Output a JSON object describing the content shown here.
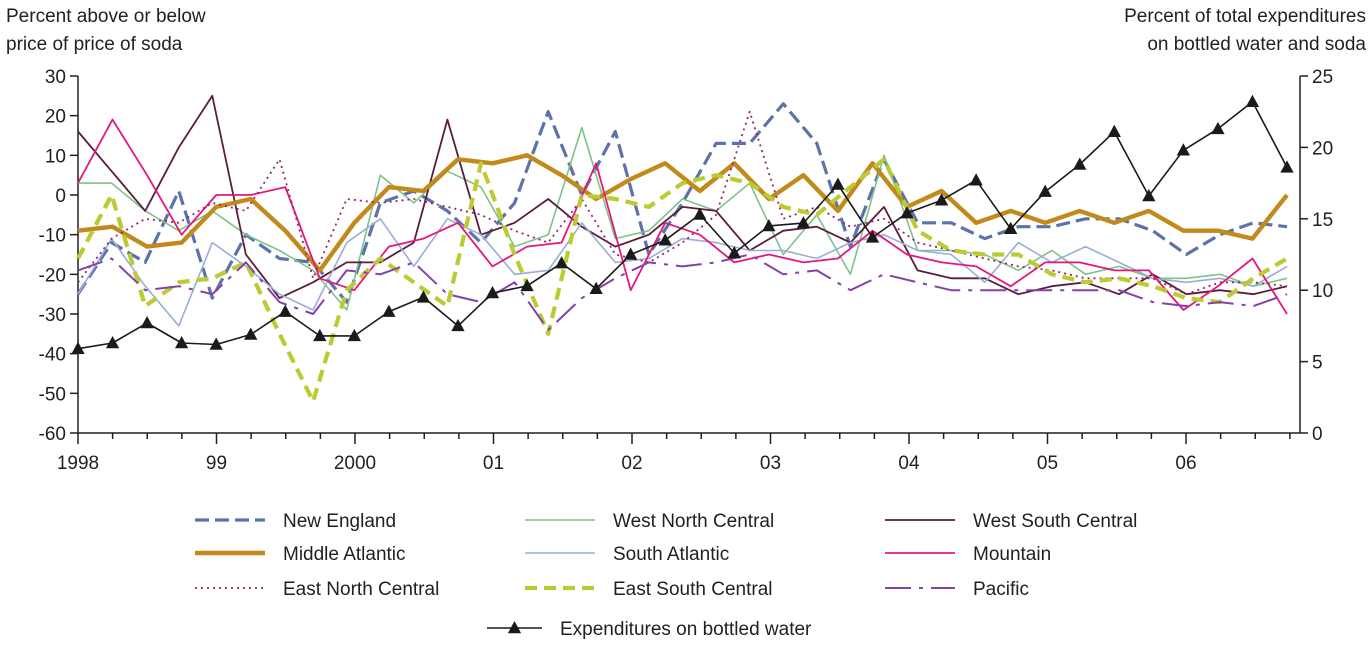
{
  "chart_data": {
    "type": "line",
    "left_axis_title": [
      "Percent above or below",
      "price of price of soda"
    ],
    "right_axis_title": [
      "Percent of total expenditures",
      "on bottled water and soda"
    ],
    "x_tick_labels": [
      "1998",
      "99",
      "2000",
      "01",
      "02",
      "03",
      "04",
      "05",
      "06"
    ],
    "x_quarters_per_year": 4,
    "y_left": {
      "ticks": [
        "30",
        "20",
        "10",
        "0",
        "-10",
        "-20",
        "-30",
        "-40",
        "-50",
        "-60"
      ],
      "ylim": [
        -60,
        30
      ]
    },
    "y_right": {
      "ticks": [
        "25",
        "20",
        "15",
        "10",
        "5",
        "0"
      ],
      "ylim": [
        0,
        25
      ]
    },
    "grid": false,
    "legend_position": "bottom",
    "series": [
      {
        "name": "New England",
        "axis": "left",
        "color": "#5b73a8",
        "dash": "14,6",
        "width": 3.2,
        "values": [
          -25,
          -12,
          -17,
          1,
          -26,
          -10,
          -16,
          -17,
          -27,
          -2,
          1,
          -4,
          -12,
          -2,
          21,
          0,
          16,
          -15,
          -2,
          13,
          13,
          23,
          13,
          -13,
          9,
          -7,
          -7,
          -11,
          -8,
          -8,
          -6,
          -6,
          -9,
          -15,
          -10,
          -7,
          -8
        ]
      },
      {
        "name": "West North Central",
        "axis": "left",
        "color": "#7ec488",
        "dash": "",
        "width": 1.6,
        "values": [
          3,
          3,
          -4,
          -9,
          -4,
          -10,
          -14,
          -19,
          -29,
          5,
          -2,
          6,
          2,
          -13,
          -10,
          17,
          -11,
          -9,
          -1,
          -4,
          3,
          -15,
          -5,
          -20,
          10,
          -14,
          -14,
          -15,
          -19,
          -14,
          -20,
          -18,
          -21,
          -21,
          -20,
          -23,
          -21
        ]
      },
      {
        "name": "West South Central",
        "axis": "left",
        "color": "#5a1e3b",
        "dash": "",
        "width": 1.8,
        "values": [
          16,
          6,
          -4,
          12,
          25,
          -15,
          -26,
          -22,
          -17,
          -17,
          -12,
          19,
          -10,
          -7,
          -1,
          -8,
          -13,
          -10,
          -3,
          -4,
          -14,
          -9,
          -8,
          -12,
          -3,
          -19,
          -21,
          -21,
          -25,
          -23,
          -22,
          -25,
          -20,
          -25,
          -24,
          -25,
          -23
        ]
      },
      {
        "name": "Middle Atlantic",
        "axis": "left",
        "color": "#c18a1a",
        "dash": "",
        "width": 4.4,
        "values": [
          -9,
          -8,
          -13,
          -12,
          -3,
          -1,
          -9,
          -19,
          -7,
          2,
          1,
          9,
          8,
          10,
          5,
          -1,
          4,
          8,
          1,
          8,
          -1,
          5,
          -4,
          8,
          -3,
          1,
          -7,
          -4,
          -7,
          -4,
          -7,
          -4,
          -9,
          -9,
          -11,
          0
        ]
      },
      {
        "name": "South Atlantic",
        "axis": "left",
        "color": "#99aed6",
        "dash": "",
        "width": 1.6,
        "values": [
          -25,
          -11,
          -23,
          -33,
          -12,
          -18,
          -25,
          -29,
          -12,
          -6,
          -18,
          -6,
          -10,
          -20,
          -19,
          -7,
          -17,
          -16,
          -11,
          -12,
          -14,
          -14,
          -16,
          -12,
          -10,
          -14,
          -15,
          -22,
          -12,
          -17,
          -13,
          -17,
          -21,
          -22,
          -21,
          -23,
          -18
        ]
      },
      {
        "name": "Mountain",
        "axis": "left",
        "color": "#e5177d",
        "dash": "",
        "width": 1.8,
        "values": [
          3,
          19,
          5,
          -10,
          0,
          0,
          2,
          -21,
          -24,
          -13,
          -11,
          -7,
          -18,
          -13,
          -12,
          8,
          -24,
          -7,
          -10,
          -17,
          -15,
          -17,
          -16,
          -9,
          -15,
          -17,
          -18,
          -23,
          -17,
          -17,
          -19,
          -19,
          -29,
          -23,
          -16,
          -30
        ]
      },
      {
        "name": "East North Central",
        "axis": "left",
        "color": "#92276b",
        "dash": "2,4",
        "width": 1.8,
        "values": [
          -22,
          -11,
          -6,
          -7,
          -2,
          -4,
          9,
          -21,
          -1,
          -2,
          -1,
          -3,
          -5,
          -9,
          -12,
          -1,
          -15,
          -17,
          -12,
          -5,
          21,
          -6,
          -3,
          -8,
          -6,
          -12,
          -14,
          -16,
          -18,
          -19,
          -21,
          -21,
          -21,
          -25,
          -22,
          -22,
          -23
        ]
      },
      {
        "name": "East South Central",
        "axis": "left",
        "color": "#bccb34",
        "dash": "12,7",
        "width": 4.2,
        "values": [
          -16,
          0,
          -28,
          -22,
          -21,
          -17,
          -35,
          -52,
          -24,
          -16,
          -22,
          -28,
          8,
          -15,
          -35,
          0,
          -1,
          -3,
          3,
          5,
          3,
          -3,
          -5,
          2,
          9,
          -9,
          -14,
          -15,
          -15,
          -20,
          -22,
          -21,
          -23,
          -26,
          -27,
          -21,
          -16
        ]
      },
      {
        "name": "Pacific",
        "axis": "left",
        "color": "#8640a8",
        "dash": "26,8,4,8",
        "width": 2.0,
        "values": [
          -19,
          -16,
          -24,
          -23,
          -25,
          -17,
          -27,
          -30,
          -19,
          -20,
          -17,
          -25,
          -27,
          -22,
          -34,
          -26,
          -21,
          -17,
          -18,
          -17,
          -15,
          -20,
          -19,
          -24,
          -20,
          -22,
          -24,
          -24,
          -24,
          -24,
          -24,
          -24,
          -27,
          -28,
          -27,
          -28,
          -25
        ]
      },
      {
        "name": "Expenditures on bottled water",
        "axis": "right",
        "color": "#1a1a1a",
        "dash": "",
        "width": 1.6,
        "marker": "triangle",
        "values": [
          5.9,
          6.3,
          7.7,
          6.3,
          6.2,
          6.9,
          8.5,
          6.8,
          6.8,
          8.5,
          9.5,
          7.5,
          9.8,
          10.3,
          11.9,
          10.1,
          12.5,
          13.5,
          15.3,
          12.6,
          14.5,
          14.7,
          17.4,
          13.7,
          15.4,
          16.3,
          17.7,
          14.3,
          16.9,
          18.8,
          21.1,
          16.6,
          19.8,
          21.3,
          23.2,
          18.6
        ]
      }
    ]
  }
}
